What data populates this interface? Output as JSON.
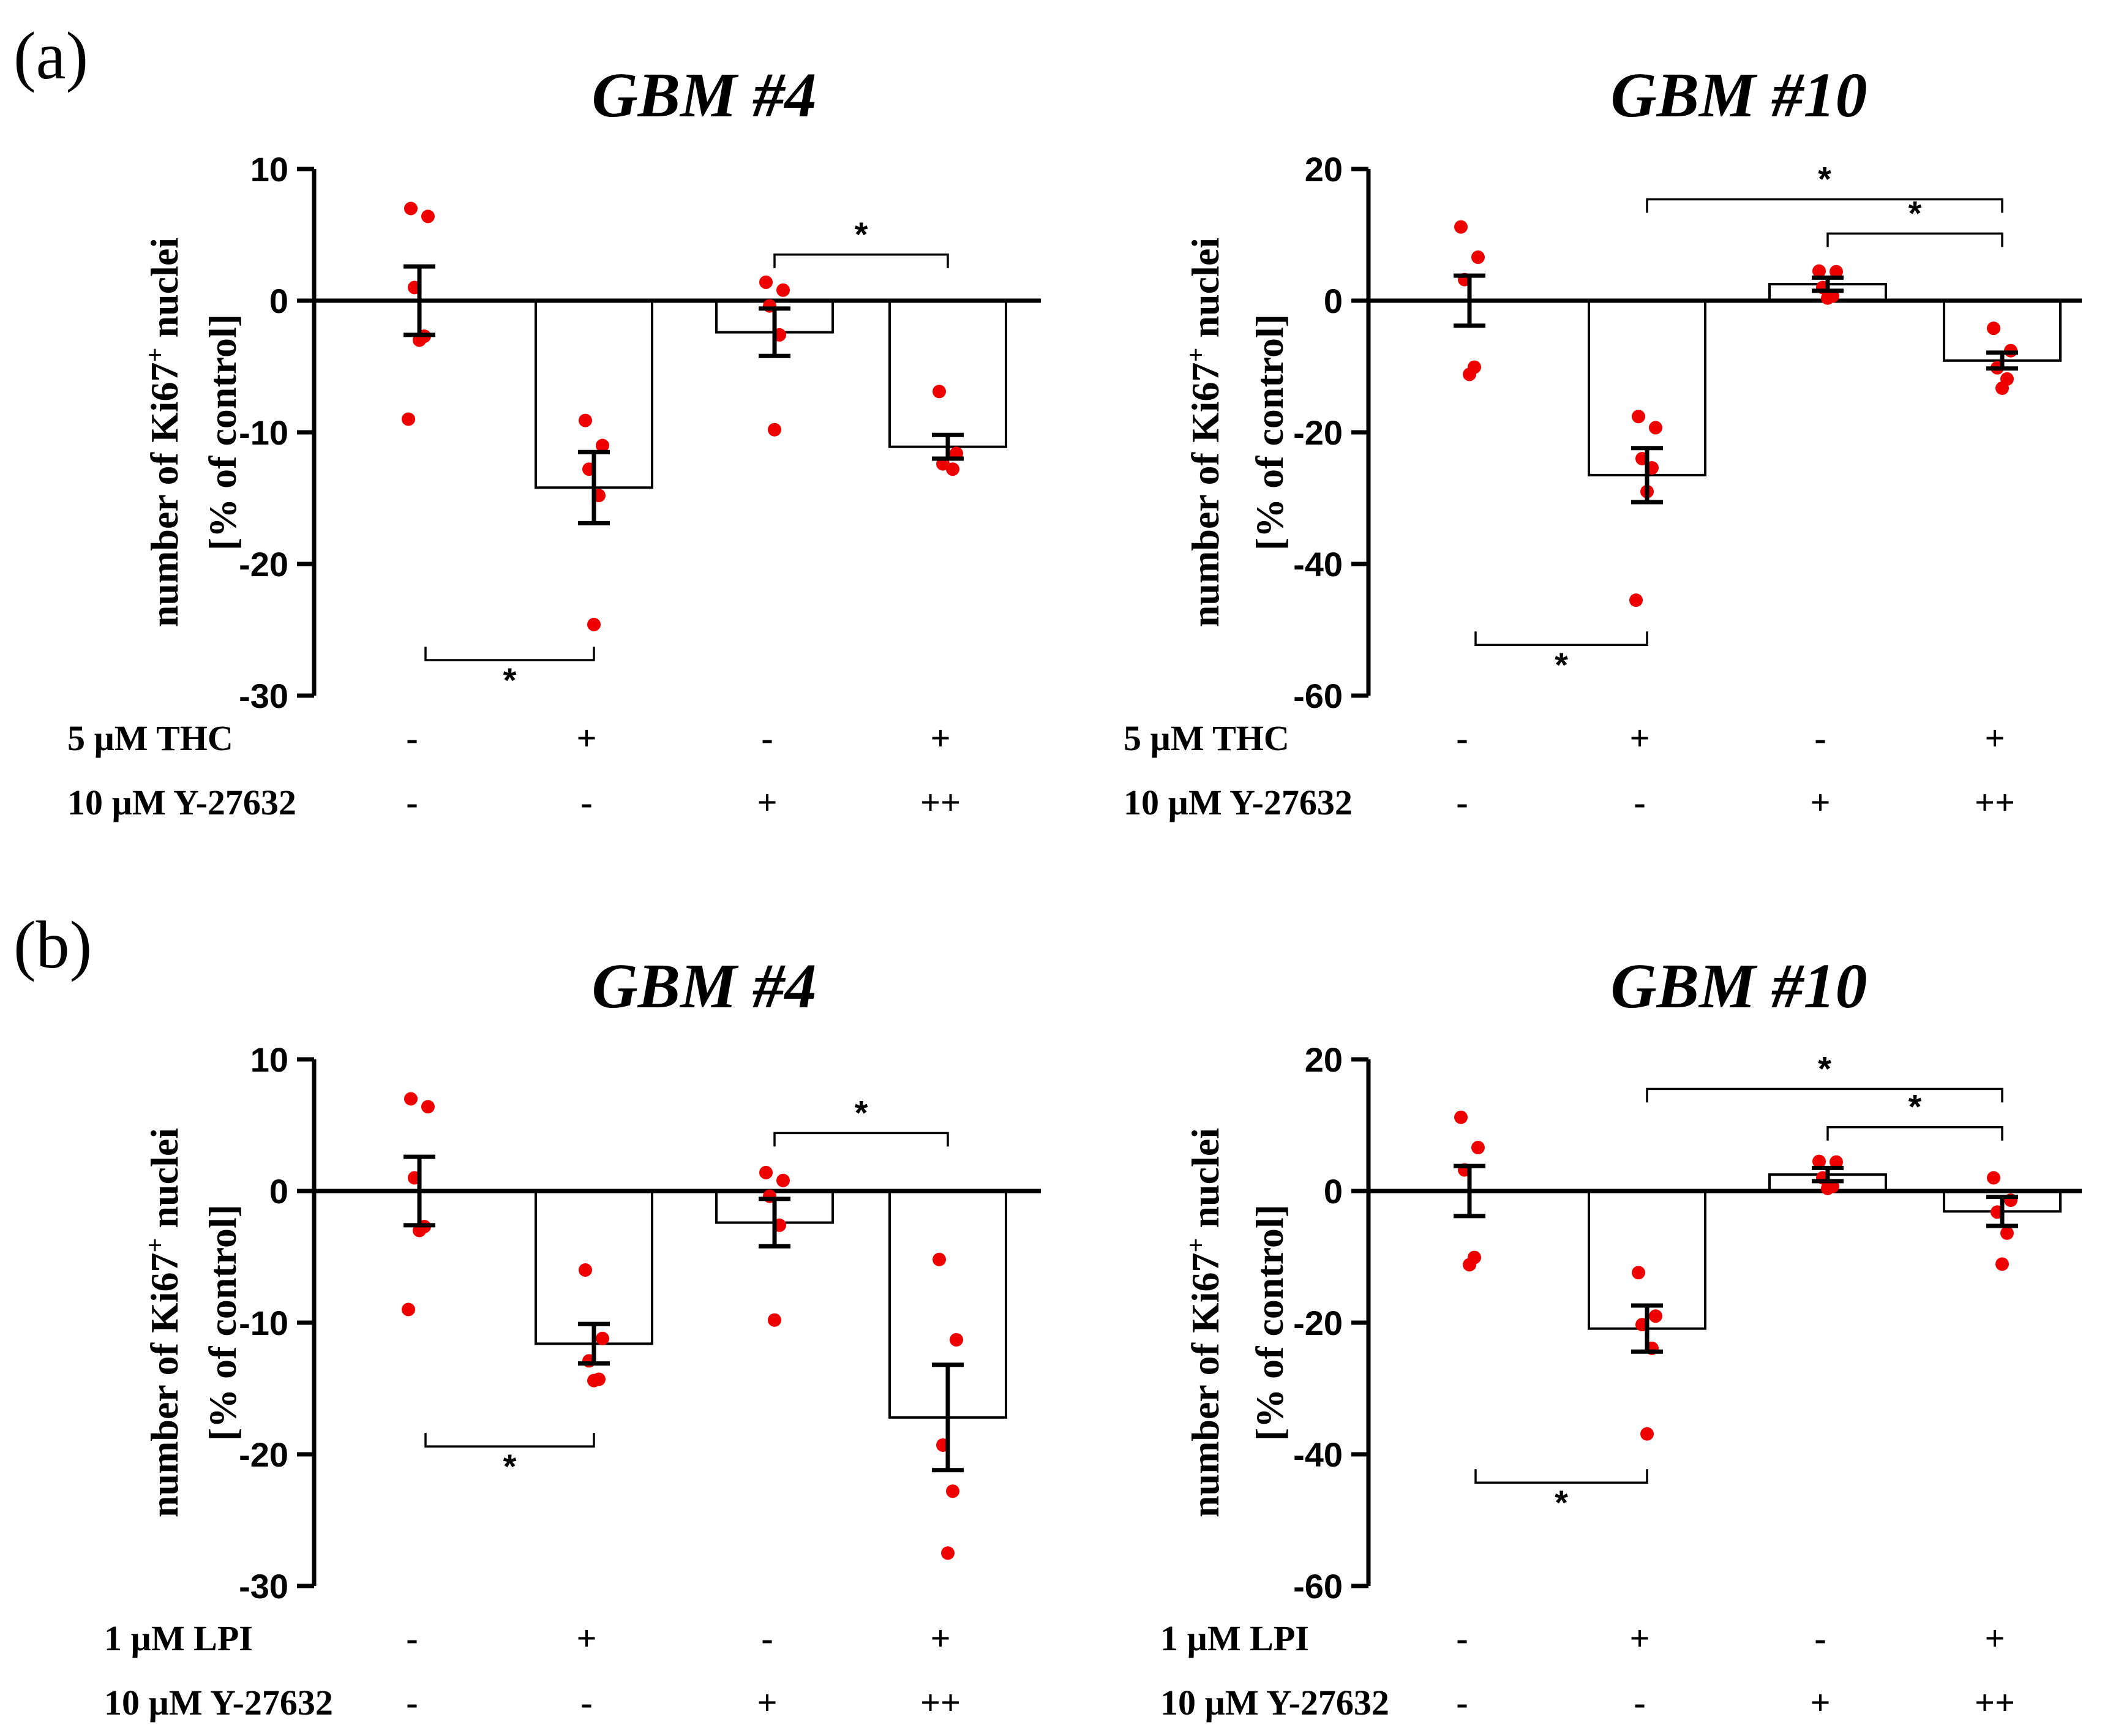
{
  "panel_labels": [
    "(a)",
    "(b)"
  ],
  "colors": {
    "axis": "#000000",
    "bar_fill": "#ffffff",
    "point": "#ee0000",
    "text": "#000000"
  },
  "ylabel_main": "number of Ki67",
  "ylabel_sup": "+",
  "ylabel_tail": " nuclei",
  "ylabel_line2": "[% of control]",
  "chart_data": [
    {
      "type": "bar",
      "panel": "(a)",
      "title": "GBM #4",
      "ylim": [
        -30,
        10
      ],
      "yticks": [
        "10",
        "0",
        "-10",
        "-20",
        "-30"
      ],
      "treatment_rows": [
        {
          "label": "5 µM THC",
          "values": [
            "-",
            "+",
            "-",
            "+"
          ]
        },
        {
          "label": "10 µM Y-27632",
          "values": [
            "-",
            "-",
            "+",
            "++"
          ]
        }
      ],
      "values": [
        0,
        -14.2,
        -2.4,
        -11.1
      ],
      "errors": [
        2.6,
        2.7,
        1.8,
        0.9
      ],
      "points": [
        [
          7.0,
          6.4,
          1.0,
          -2.7,
          -3.0,
          -9.0
        ],
        [
          -9.1,
          -11.0,
          -12.8,
          -14.8,
          -24.6
        ],
        [
          1.4,
          0.8,
          -0.4,
          -2.6,
          -9.8
        ],
        [
          -6.9,
          -11.6,
          -12.4,
          -12.8
        ]
      ],
      "significance": [
        {
          "from": 1,
          "to": 2,
          "label": "*",
          "y": -27.3,
          "position": "below"
        },
        {
          "from": 3,
          "to": 4,
          "label": "*",
          "y": 3.5,
          "position": "above"
        }
      ]
    },
    {
      "type": "bar",
      "panel": "(a)",
      "title": "GBM #10",
      "ylim": [
        -60,
        20
      ],
      "yticks": [
        "20",
        "0",
        "-20",
        "-40",
        "-60"
      ],
      "treatment_rows": [
        {
          "label": "5 µM THC",
          "values": [
            "-",
            "+",
            "-",
            "+"
          ]
        },
        {
          "label": "10 µM Y-27632",
          "values": [
            "-",
            "-",
            "+",
            "++"
          ]
        }
      ],
      "values": [
        0,
        -26.5,
        2.5,
        -9.1
      ],
      "errors": [
        3.8,
        4.1,
        1.0,
        1.2
      ],
      "points": [
        [
          11.2,
          6.6,
          3.2,
          -10.1,
          -11.2
        ],
        [
          -17.6,
          -19.3,
          -24.0,
          -25.4,
          -29.0,
          -45.5
        ],
        [
          4.5,
          4.4,
          2.0,
          0.7,
          0.4
        ],
        [
          -4.2,
          -7.6,
          -10.2,
          -11.9,
          -13.3
        ]
      ],
      "significance": [
        {
          "from": 1,
          "to": 2,
          "label": "*",
          "y": -52.3,
          "position": "below"
        },
        {
          "from": 2,
          "to": 4,
          "label": "*",
          "y": 15.4,
          "position": "above"
        },
        {
          "from": 3,
          "to": 4,
          "label": "*",
          "y": 10.2,
          "position": "above"
        }
      ]
    },
    {
      "type": "bar",
      "panel": "(b)",
      "title": "GBM #4",
      "ylim": [
        -30,
        10
      ],
      "yticks": [
        "10",
        "0",
        "-10",
        "-20",
        "-30"
      ],
      "treatment_rows": [
        {
          "label": "1 µM LPI",
          "values": [
            "-",
            "+",
            "-",
            "+"
          ]
        },
        {
          "label": "10 µM Y-27632",
          "values": [
            "-",
            "-",
            "+",
            "++"
          ]
        }
      ],
      "values": [
        0,
        -11.6,
        -2.4,
        -17.2
      ],
      "errors": [
        2.6,
        1.5,
        1.8,
        4.0
      ],
      "points": [
        [
          7.0,
          6.4,
          1.0,
          -2.7,
          -3.0,
          -9.0
        ],
        [
          -6.0,
          -11.2,
          -12.9,
          -14.3,
          -14.4
        ],
        [
          1.4,
          0.8,
          -0.4,
          -2.6,
          -9.8
        ],
        [
          -5.2,
          -11.3,
          -19.3,
          -22.8,
          -27.5
        ]
      ],
      "significance": [
        {
          "from": 1,
          "to": 2,
          "label": "*",
          "y": -19.4,
          "position": "below"
        },
        {
          "from": 3,
          "to": 4,
          "label": "*",
          "y": 4.4,
          "position": "above"
        }
      ]
    },
    {
      "type": "bar",
      "panel": "(b)",
      "title": "GBM #10",
      "ylim": [
        -60,
        20
      ],
      "yticks": [
        "20",
        "0",
        "-20",
        "-40",
        "-60"
      ],
      "treatment_rows": [
        {
          "label": "1 µM LPI",
          "values": [
            "-",
            "+",
            "-",
            "+"
          ]
        },
        {
          "label": "10 µM Y-27632",
          "values": [
            "-",
            "-",
            "+",
            "++"
          ]
        }
      ],
      "values": [
        0,
        -20.9,
        2.5,
        -3.1
      ],
      "errors": [
        3.8,
        3.5,
        1.0,
        2.2
      ],
      "points": [
        [
          11.2,
          6.6,
          3.2,
          -10.1,
          -11.2
        ],
        [
          -12.4,
          -19.0,
          -20.3,
          -23.9,
          -36.9
        ],
        [
          4.5,
          4.4,
          2.0,
          0.7,
          0.4
        ],
        [
          2.0,
          -1.4,
          -3.2,
          -6.4,
          -11.1
        ]
      ],
      "significance": [
        {
          "from": 1,
          "to": 2,
          "label": "*",
          "y": -44.3,
          "position": "below"
        },
        {
          "from": 2,
          "to": 4,
          "label": "*",
          "y": 15.5,
          "position": "above"
        },
        {
          "from": 3,
          "to": 4,
          "label": "*",
          "y": 9.7,
          "position": "above"
        }
      ]
    }
  ]
}
